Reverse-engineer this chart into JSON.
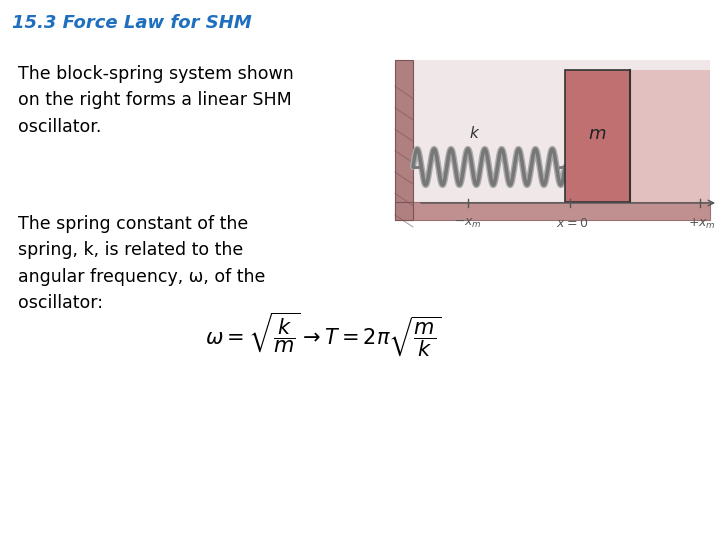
{
  "title": "15.3 Force Law for SHM",
  "title_color": "#1F6FBF",
  "title_fontsize": 13,
  "bg_color": "#ffffff",
  "text1": "The block-spring system shown\non the right forms a linear SHM\noscillator.",
  "text2": "The spring constant of the\nspring, k, is related to the\nangular frequency, ω, of the\noscillator:",
  "text_fontsize": 12.5,
  "text_color": "#000000",
  "formula": "$\\omega = \\sqrt{\\dfrac{k}{m}} \\rightarrow T = 2\\pi\\sqrt{\\dfrac{m}{k}}$",
  "formula_fontsize": 15,
  "wall_color": "#b08080",
  "floor_color": "#c09090",
  "block_face_color": "#c07070",
  "block_right_color": "#d8a0a0",
  "spring_color": "#888888",
  "diag_bg": "#f0e8e8",
  "axis_color": "#555555",
  "label_color": "#555555"
}
